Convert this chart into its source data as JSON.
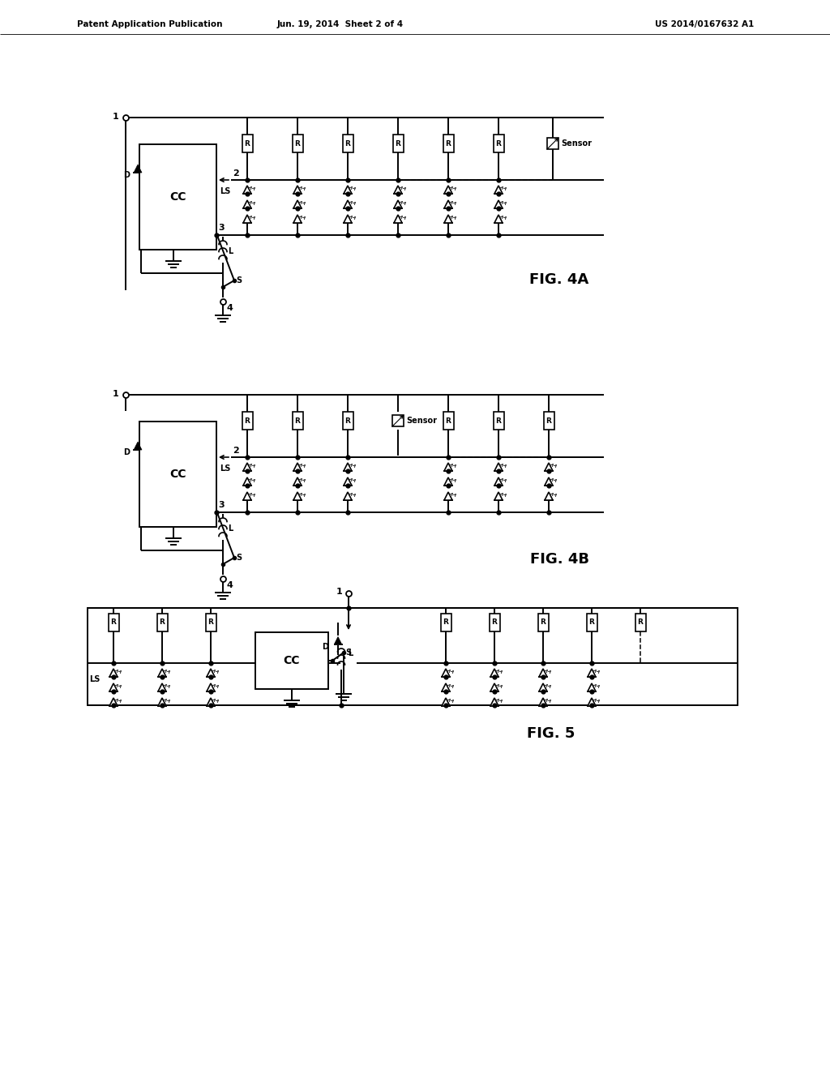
{
  "header_left": "Patent Application Publication",
  "header_mid": "Jun. 19, 2014  Sheet 2 of 4",
  "header_right": "US 2014/0167632 A1",
  "fig4a_label": "FIG. 4A",
  "fig4b_label": "FIG. 4B",
  "fig5_label": "FIG. 5",
  "bg_color": "#ffffff",
  "lc": "#000000",
  "lw": 1.4
}
